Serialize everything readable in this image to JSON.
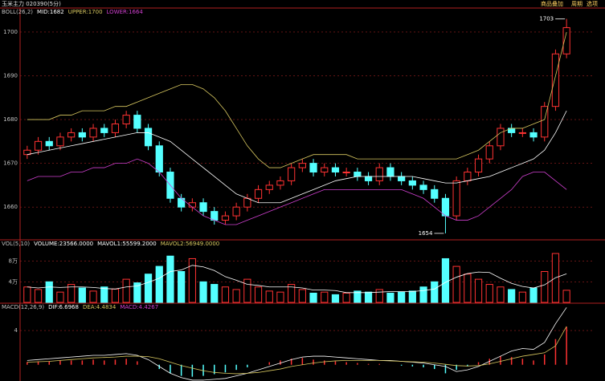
{
  "header": {
    "title": "玉米主力 020390(5分)",
    "buttons": [
      "商品叠加",
      "周期",
      "选项"
    ]
  },
  "chart_data": [
    {
      "type": "candlestick",
      "header": [
        {
          "text": "BOLL(26,2)",
          "color": "#c0c0c0"
        },
        {
          "text": "MID:1682",
          "color": "#ffffff"
        },
        {
          "text": "UPPER:1700",
          "color": "#d8c860"
        },
        {
          "text": "LOWER:1664",
          "color": "#d040d0"
        }
      ],
      "open": [
        1672,
        1673,
        1675,
        1674,
        1676,
        1677,
        1676,
        1678,
        1677,
        1679,
        1681,
        1678,
        1674,
        1668,
        1662,
        1660,
        1661,
        1659,
        1657,
        1658,
        1660,
        1662,
        1664,
        1665,
        1666,
        1669,
        1670,
        1668,
        1669,
        1668,
        1668,
        1667,
        1666,
        1669,
        1667,
        1666,
        1665,
        1664,
        1662,
        1658,
        1666,
        1668,
        1671,
        1674,
        1678,
        1677,
        1677,
        1676,
        1683,
        1695
      ],
      "high": [
        1674,
        1676,
        1676,
        1677,
        1678,
        1678,
        1679,
        1679,
        1680,
        1682,
        1682,
        1679,
        1675,
        1669,
        1663,
        1662,
        1662,
        1660,
        1659,
        1661,
        1663,
        1665,
        1666,
        1667,
        1670,
        1671,
        1671,
        1670,
        1670,
        1669,
        1669,
        1668,
        1670,
        1670,
        1668,
        1667,
        1666,
        1665,
        1663,
        1667,
        1669,
        1672,
        1675,
        1679,
        1679,
        1678,
        1678,
        1684,
        1696,
        1703
      ],
      "low": [
        1671,
        1672,
        1673,
        1673,
        1675,
        1675,
        1675,
        1676,
        1676,
        1678,
        1677,
        1673,
        1667,
        1661,
        1659,
        1659,
        1658,
        1656,
        1656,
        1657,
        1659,
        1661,
        1663,
        1664,
        1665,
        1668,
        1667,
        1667,
        1667,
        1667,
        1666,
        1665,
        1665,
        1666,
        1665,
        1664,
        1663,
        1661,
        1654,
        1657,
        1665,
        1667,
        1670,
        1673,
        1676,
        1676,
        1675,
        1675,
        1682,
        1694
      ],
      "close": [
        1673,
        1675,
        1674,
        1676,
        1677,
        1676,
        1678,
        1677,
        1679,
        1681,
        1678,
        1674,
        1668,
        1662,
        1660,
        1661,
        1659,
        1657,
        1658,
        1660,
        1662,
        1664,
        1665,
        1666,
        1669,
        1670,
        1668,
        1669,
        1668,
        1668,
        1667,
        1666,
        1669,
        1667,
        1666,
        1665,
        1664,
        1662,
        1658,
        1666,
        1668,
        1671,
        1674,
        1678,
        1677,
        1677,
        1676,
        1683,
        1695,
        1701
      ],
      "up_color": "#ff3232",
      "down_color": "#54ffff",
      "series": [
        {
          "color": "#ffffff",
          "values": [
            1672,
            1672.5,
            1673,
            1673.5,
            1674,
            1674.5,
            1675,
            1675.5,
            1676,
            1676.5,
            1677,
            1677,
            1676,
            1675,
            1673,
            1671,
            1669,
            1667,
            1665,
            1663,
            1662,
            1661,
            1661,
            1661,
            1662,
            1663,
            1664,
            1665,
            1666,
            1666.5,
            1667,
            1667,
            1667,
            1667,
            1667,
            1667,
            1666.5,
            1666,
            1665.5,
            1665.5,
            1666,
            1666.5,
            1667,
            1668,
            1669,
            1670,
            1671,
            1673,
            1677,
            1682
          ]
        },
        {
          "color": "#d8c860",
          "values": [
            1680,
            1680,
            1680,
            1681,
            1681,
            1682,
            1682,
            1682,
            1683,
            1683,
            1684,
            1685,
            1686,
            1687,
            1688,
            1688,
            1687,
            1685,
            1682,
            1678,
            1674,
            1671,
            1669,
            1669,
            1670,
            1671,
            1672,
            1672,
            1672,
            1672,
            1671,
            1671,
            1671,
            1671,
            1671,
            1671,
            1671,
            1671,
            1671,
            1671,
            1672,
            1673,
            1675,
            1677,
            1678,
            1678,
            1679,
            1680,
            1690,
            1700
          ]
        },
        {
          "color": "#d040d0",
          "values": [
            1666,
            1667,
            1667,
            1667,
            1668,
            1668,
            1669,
            1669,
            1670,
            1670,
            1671,
            1670,
            1668,
            1665,
            1662,
            1660,
            1658,
            1657,
            1656,
            1656,
            1657,
            1658,
            1659,
            1660,
            1661,
            1662,
            1663,
            1664,
            1664,
            1664,
            1664,
            1664,
            1664,
            1664,
            1664,
            1663,
            1662,
            1660,
            1658,
            1657,
            1657,
            1658,
            1660,
            1662,
            1664,
            1667,
            1668,
            1668,
            1666,
            1664
          ]
        }
      ],
      "high_label": 1703,
      "low_label": 1654,
      "ylim": [
        1652.7,
        1705.3
      ],
      "yticks": [
        1660,
        1670,
        1680,
        1690,
        1700
      ],
      "grid": true
    },
    {
      "type": "volume",
      "header": [
        {
          "text": "VOL(5,10)",
          "color": "#c0c0c0"
        },
        {
          "text": "VOLUME:23566.0000",
          "color": "#ffffff"
        },
        {
          "text": "MAVOL1:55599.2000",
          "color": "#ffffff"
        },
        {
          "text": "MAVOL2:56949.0000",
          "color": "#d8c860"
        }
      ],
      "values": [
        30000,
        25000,
        40000,
        20000,
        35000,
        28000,
        22000,
        30000,
        26000,
        45000,
        38000,
        55000,
        70000,
        90000,
        60000,
        85000,
        40000,
        35000,
        30000,
        25000,
        45000,
        30000,
        22000,
        20000,
        35000,
        25000,
        18000,
        20000,
        15000,
        18000,
        22000,
        20000,
        25000,
        18000,
        20000,
        22000,
        30000,
        40000,
        85000,
        70000,
        55000,
        45000,
        35000,
        30000,
        25000,
        20000,
        28000,
        60000,
        95000,
        23566
      ],
      "series": [
        {
          "color": "#ffffff",
          "values": [
            30000,
            28000,
            30000,
            29000,
            30000,
            30000,
            29000,
            27000,
            26000,
            30000,
            32000,
            39000,
            47000,
            60000,
            63000,
            72000,
            69000,
            62000,
            50000,
            43000,
            35000,
            33000,
            30000,
            30000,
            30000,
            28000,
            24000,
            24000,
            23000,
            19000,
            19000,
            19000,
            20000,
            21000,
            21000,
            21000,
            23000,
            26000,
            39000,
            49000,
            56000,
            59000,
            58000,
            47000,
            37000,
            31000,
            28000,
            34000,
            48000,
            55599.2
          ]
        }
      ],
      "ylim": [
        0,
        120000
      ],
      "yticks": [
        {
          "value": 40000,
          "label": "4万"
        },
        {
          "value": 80000,
          "label": "8万"
        }
      ],
      "grid": true
    },
    {
      "type": "macd",
      "header": [
        {
          "text": "MACD(12,26,9)",
          "color": "#c0c0c0"
        },
        {
          "text": "DIF:6.6968",
          "color": "#ffffff"
        },
        {
          "text": "DEA:4.4834",
          "color": "#d8c860"
        },
        {
          "text": "MACD:4.4267",
          "color": "#d040d0"
        }
      ],
      "values": [
        0.3,
        0.4,
        0.4,
        0.5,
        0.5,
        0.5,
        0.6,
        0.5,
        0.6,
        0.7,
        0.4,
        0,
        -0.5,
        -1,
        -1.3,
        -1.4,
        -1.3,
        -1.1,
        -0.9,
        -0.6,
        -0.3,
        0,
        0.3,
        0.5,
        0.7,
        0.8,
        0.6,
        0.5,
        0.4,
        0.3,
        0.2,
        0.1,
        0.1,
        0,
        -0.1,
        -0.2,
        -0.3,
        -0.5,
        -1,
        -0.6,
        -0.2,
        0.3,
        0.7,
        1,
        0.9,
        0.7,
        0.5,
        1.2,
        3,
        4.4267
      ],
      "pos_color": "#ff3232",
      "neg_color": "#54ffff",
      "series": [
        {
          "color": "#ffffff",
          "values": [
            0.5,
            0.6,
            0.7,
            0.8,
            0.9,
            1,
            1.1,
            1.1,
            1.2,
            1.3,
            1.1,
            0.6,
            -0.2,
            -1,
            -1.5,
            -1.8,
            -1.8,
            -1.7,
            -1.6,
            -1.3,
            -1,
            -0.6,
            -0.2,
            0.2,
            0.6,
            0.9,
            1,
            1,
            0.9,
            0.8,
            0.7,
            0.6,
            0.5,
            0.5,
            0.4,
            0.3,
            0.2,
            0,
            -0.2,
            -0.8,
            -0.6,
            -0.2,
            0.4,
            1,
            1.6,
            1.9,
            1.8,
            2.6,
            4.8,
            6.6968
          ]
        },
        {
          "color": "#d8c860",
          "values": [
            0.3,
            0.35,
            0.4,
            0.5,
            0.6,
            0.7,
            0.8,
            0.85,
            0.9,
            1,
            1,
            0.95,
            0.7,
            0.3,
            -0.1,
            -0.4,
            -0.7,
            -0.9,
            -1,
            -1.05,
            -1,
            -0.9,
            -0.7,
            -0.5,
            -0.2,
            0,
            0.2,
            0.35,
            0.45,
            0.5,
            0.5,
            0.5,
            0.5,
            0.45,
            0.4,
            0.35,
            0.3,
            0.2,
            0.05,
            -0.1,
            -0.15,
            -0.1,
            0.1,
            0.4,
            0.7,
            1,
            1.2,
            1.4,
            2.2,
            4.4834
          ]
        }
      ],
      "ylim": [
        -1.9,
        7.1
      ],
      "yticks": [
        4
      ],
      "grid": true
    }
  ]
}
